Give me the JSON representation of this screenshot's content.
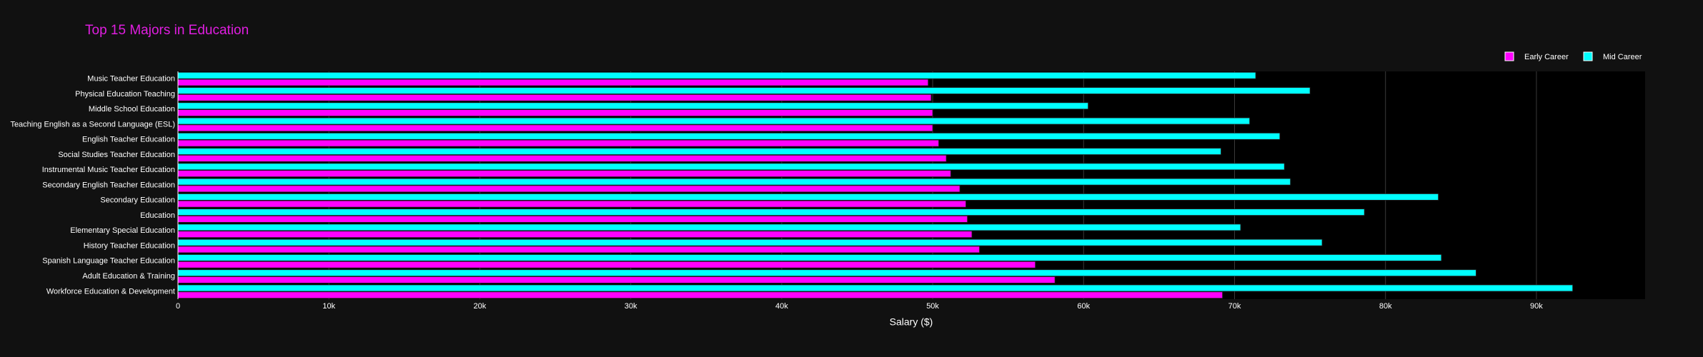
{
  "chart_data": {
    "type": "hbar",
    "title": "Top 15 Majors in Education",
    "xlabel": "Salary ($)",
    "categories": [
      "Music Teacher Education",
      "Physical Education Teaching",
      "Middle School Education",
      "Teaching English as a Second Language (ESL)",
      "English Teacher Education",
      "Social Studies Teacher Education",
      "Instrumental Music Teacher Education",
      "Secondary English Teacher Education",
      "Secondary Education",
      "Education",
      "Elementary Special Education",
      "History Teacher Education",
      "Spanish Language Teacher Education",
      "Adult Education & Training",
      "Workforce Education & Development"
    ],
    "series": [
      {
        "name": "Early Career",
        "color": "#ff00ff",
        "values": [
          49700,
          49900,
          50000,
          50000,
          50400,
          50900,
          51200,
          51800,
          52200,
          52300,
          52600,
          53100,
          56800,
          58100,
          69200
        ]
      },
      {
        "name": "Mid Career",
        "color": "#00ffff",
        "values": [
          71400,
          75000,
          60300,
          71000,
          73000,
          69100,
          73300,
          73700,
          83500,
          78600,
          70400,
          75800,
          83700,
          86000,
          92400
        ]
      }
    ],
    "xlim": [
      0,
      97200
    ],
    "xticks": [
      0,
      {
        "value": 10000,
        "label": "10k"
      },
      {
        "value": 20000,
        "label": "20k"
      },
      {
        "value": 30000,
        "label": "30k"
      },
      {
        "value": 40000,
        "label": "40k"
      },
      {
        "value": 50000,
        "label": "50k"
      },
      {
        "value": 60000,
        "label": "60k"
      },
      {
        "value": 70000,
        "label": "70k"
      },
      {
        "value": 80000,
        "label": "80k"
      },
      {
        "value": 90000,
        "label": "90k"
      }
    ],
    "grid": true,
    "legend": "top-right"
  }
}
